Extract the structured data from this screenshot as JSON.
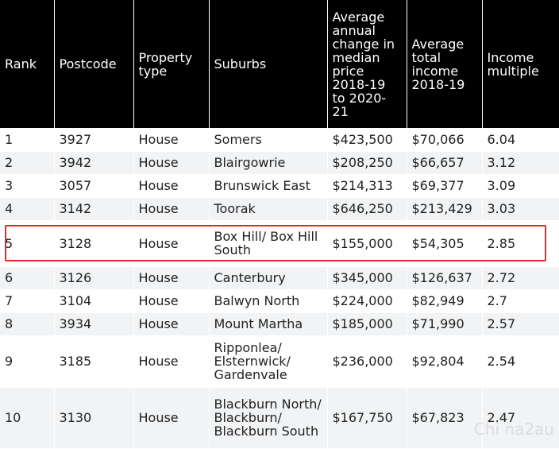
{
  "table": {
    "headers": [
      "Rank",
      "Postcode",
      "Property type",
      "Suburbs",
      "Average annual change in median price 2018-19 to 2020-21",
      "Average total income 2018-19",
      "Income multiple"
    ],
    "rows": [
      [
        "1",
        "3927",
        "House",
        "Somers",
        "$423,500",
        "$70,066",
        "6.04"
      ],
      [
        "2",
        "3942",
        "House",
        "Blairgowrie",
        "$208,250",
        "$66,657",
        "3.12"
      ],
      [
        "3",
        "3057",
        "House",
        "Brunswick East",
        "$214,313",
        "$69,377",
        "3.09"
      ],
      [
        "4",
        "3142",
        "House",
        "Toorak",
        "$646,250",
        "$213,429",
        "3.03"
      ],
      [
        "5",
        "3128",
        "House",
        "Box Hill/ Box Hill South",
        "$155,000",
        "$54,305",
        "2.85"
      ],
      [
        "6",
        "3126",
        "House",
        "Canterbury",
        "$345,000",
        "$126,637",
        "2.72"
      ],
      [
        "7",
        "3104",
        "House",
        "Balwyn North",
        "$224,000",
        "$82,949",
        "2.7"
      ],
      [
        "8",
        "3934",
        "House",
        "Mount Martha",
        "$185,000",
        "$71,990",
        "2.57"
      ],
      [
        "9",
        "3185",
        "House",
        "Ripponlea/ Elsternwick/ Gardenvale",
        "$236,000",
        "$92,804",
        "2.54"
      ],
      [
        "10",
        "3130",
        "House",
        "Blackburn North/ Blackburn/ Blackburn South",
        "$167,750",
        "$67,823",
        "2.47"
      ]
    ],
    "highlighted_rank": "5"
  },
  "watermark": "Chi na2au",
  "colors": {
    "header_bg": "#000000",
    "header_text": "#ffffff",
    "row_alt_bg": "#f1f3f5",
    "highlight_border": "#e8232a"
  }
}
